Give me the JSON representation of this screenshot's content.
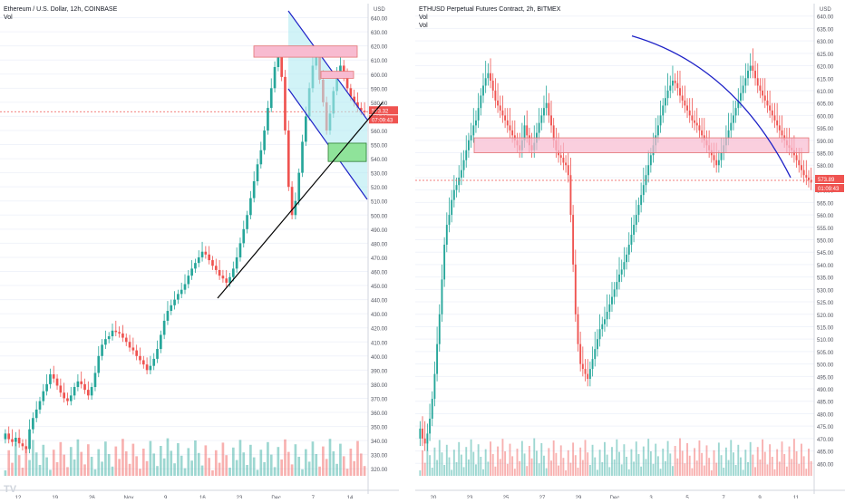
{
  "chart_data": [
    {
      "type": "candlestick",
      "title": "Ethereum / U.S. Dollar, 12h, COINBASE",
      "volume_label": "Vol",
      "ylim": [
        315,
        650
      ],
      "y_ticks": [
        "640.00",
        "630.00",
        "620.00",
        "610.00",
        "600.00",
        "590.00",
        "580.00",
        "570.00",
        "560.00",
        "550.00",
        "540.00",
        "530.00",
        "520.00",
        "510.00",
        "500.00",
        "490.00",
        "480.00",
        "470.00",
        "460.00",
        "450.00",
        "440.00",
        "430.00",
        "420.00",
        "410.00",
        "400.00",
        "390.00",
        "380.00",
        "370.00",
        "360.00",
        "350.00",
        "340.00",
        "330.00",
        "320.00"
      ],
      "x_ticks": [
        "12",
        "19",
        "26",
        "Nov",
        "9",
        "16",
        "23",
        "Dec",
        "7",
        "14"
      ],
      "currency": "USD",
      "price_label": "573.32",
      "countdown_label": "07:09:43",
      "last_price": 573.32,
      "candles_closes": [
        345,
        341,
        339,
        342,
        338,
        336,
        334,
        348,
        356,
        362,
        368,
        375,
        380,
        387,
        384,
        379,
        374,
        370,
        368,
        372,
        378,
        382,
        380,
        376,
        372,
        378,
        388,
        400,
        408,
        412,
        414,
        418,
        417,
        416,
        413,
        410,
        406,
        404,
        400,
        397,
        394,
        390,
        393,
        398,
        405,
        415,
        425,
        432,
        436,
        440,
        444,
        447,
        451,
        457,
        462,
        466,
        470,
        474,
        472,
        468,
        464,
        461,
        457,
        455,
        452,
        456,
        462,
        470,
        480,
        490,
        500,
        512,
        524,
        536,
        546,
        560,
        576,
        590,
        605,
        612,
        598,
        560,
        520,
        500,
        510,
        530,
        552,
        570,
        590,
        606,
        612,
        596,
        580,
        560,
        572,
        588,
        600,
        606,
        598,
        590,
        584,
        580,
        576,
        574,
        573
      ],
      "annotations": [
        "supply zone 612-620",
        "zone 597-602",
        "demand zone 538-551",
        "descending channel",
        "ascending trendline"
      ]
    },
    {
      "type": "candlestick",
      "title": "ETHUSD Perpetual Futures Contract, 2h, BITMEX",
      "volume_labels": [
        "Vol",
        "Vol"
      ],
      "ylim": [
        455,
        645
      ],
      "y_ticks": [
        "640.00",
        "635.00",
        "630.00",
        "625.00",
        "620.00",
        "615.00",
        "610.00",
        "605.00",
        "600.00",
        "595.00",
        "590.00",
        "585.00",
        "580.00",
        "575.00",
        "570.00",
        "565.00",
        "560.00",
        "555.00",
        "550.00",
        "545.00",
        "540.00",
        "535.00",
        "530.00",
        "525.00",
        "520.00",
        "515.00",
        "510.00",
        "505.00",
        "500.00",
        "495.00",
        "490.00",
        "485.00",
        "480.00",
        "475.00",
        "470.00",
        "465.00",
        "460.00"
      ],
      "x_ticks": [
        "20",
        "23",
        "25",
        "27",
        "29",
        "Dec",
        "3",
        "5",
        "7",
        "9",
        "11"
      ],
      "currency": "USD",
      "price_label": "573.89",
      "countdown_label": "01:09:43",
      "last_price": 573.89,
      "candles_closes": [
        474,
        470,
        468,
        472,
        478,
        486,
        496,
        508,
        520,
        534,
        548,
        556,
        560,
        566,
        570,
        572,
        575,
        578,
        582,
        586,
        590,
        592,
        596,
        598,
        603,
        608,
        612,
        615,
        617,
        614,
        610,
        606,
        604,
        602,
        600,
        598,
        596,
        594,
        592,
        590,
        588,
        586,
        590,
        596,
        592,
        588,
        586,
        589,
        593,
        597,
        600,
        603,
        605,
        600,
        596,
        590,
        586,
        584,
        583,
        581,
        580,
        576,
        560,
        540,
        520,
        508,
        500,
        498,
        496,
        494,
        498,
        502,
        506,
        510,
        514,
        516,
        518,
        521,
        524,
        527,
        530,
        533,
        536,
        538,
        541,
        544,
        548,
        552,
        556,
        560,
        564,
        568,
        572,
        576,
        580,
        584,
        588,
        592,
        596,
        600,
        604,
        607,
        610,
        612,
        614,
        613,
        611,
        608,
        606,
        604,
        602,
        600,
        598,
        597,
        596,
        594,
        592,
        590,
        588,
        586,
        584,
        582,
        580,
        582,
        585,
        588,
        591,
        594,
        597,
        600,
        603,
        606,
        609,
        612,
        615,
        618,
        620,
        618,
        615,
        612,
        610,
        608,
        606,
        604,
        602,
        600,
        598,
        596,
        594,
        592,
        590,
        588,
        587,
        586,
        584,
        582,
        580,
        578,
        576,
        575,
        574,
        573
      ],
      "annotations": [
        "resistance zone 585-591",
        "descending curve"
      ]
    }
  ]
}
